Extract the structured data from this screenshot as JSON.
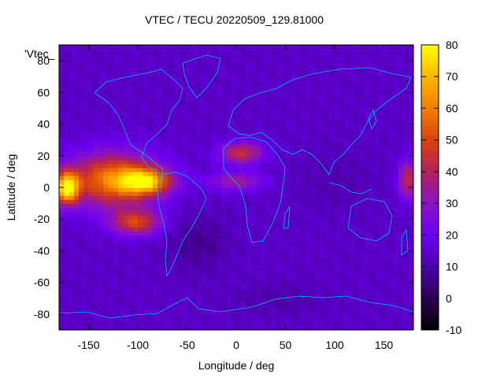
{
  "chart_data": {
    "type": "heatmap",
    "title": "VTEC / TECU 20220509_129.81000",
    "xlabel": "Longitude / deg",
    "ylabel": "Latitude / deg",
    "key_label": "'Vtec_",
    "xlim": [
      -180,
      180
    ],
    "ylim": [
      -90,
      90
    ],
    "x_ticks": [
      -150,
      -100,
      -50,
      0,
      50,
      100,
      150
    ],
    "y_ticks": [
      -80,
      -60,
      -40,
      -20,
      0,
      20,
      40,
      60,
      80
    ],
    "x_tick_labels": [
      "-150",
      "-100",
      "-50",
      "0",
      "50",
      "100",
      "150"
    ],
    "y_tick_labels": [
      "-80",
      "-60",
      "-40",
      "-20",
      "0",
      "20",
      "40",
      "60",
      "80"
    ],
    "colorbar": {
      "range": [
        -10,
        80
      ],
      "ticks": [
        -10,
        0,
        10,
        20,
        30,
        40,
        50,
        60,
        70,
        80
      ],
      "tick_labels": [
        "-10",
        "0",
        "10",
        "20",
        "30",
        "40",
        "50",
        "60",
        "70",
        "80"
      ]
    },
    "background_value": 14,
    "features": [
      {
        "lon": -125,
        "lat": 5,
        "peak": 46,
        "sigma_lon": 45,
        "sigma_lat": 17
      },
      {
        "lon": -172,
        "lat": 0,
        "peak": 60,
        "sigma_lon": 12,
        "sigma_lat": 10
      },
      {
        "lon": -92,
        "lat": 4,
        "peak": 46,
        "sigma_lon": 25,
        "sigma_lat": 8
      },
      {
        "lon": -102,
        "lat": -22,
        "peak": 34,
        "sigma_lon": 25,
        "sigma_lat": 8
      },
      {
        "lon": 5,
        "lat": 22,
        "peak": 30,
        "sigma_lon": 22,
        "sigma_lat": 7
      },
      {
        "lon": 0,
        "lat": 4,
        "peak": 20,
        "sigma_lon": 28,
        "sigma_lat": 6
      },
      {
        "lon": 175,
        "lat": 5,
        "peak": 30,
        "sigma_lon": 10,
        "sigma_lat": 12
      },
      {
        "lon": -40,
        "lat": -35,
        "peak": -7,
        "sigma_lon": 30,
        "sigma_lat": 18
      },
      {
        "lon": 100,
        "lat": 5,
        "peak": -3,
        "sigma_lon": 40,
        "sigma_lat": 20
      },
      {
        "lon": 40,
        "lat": -70,
        "peak": -4,
        "sigma_lon": 45,
        "sigma_lat": 10
      }
    ]
  }
}
